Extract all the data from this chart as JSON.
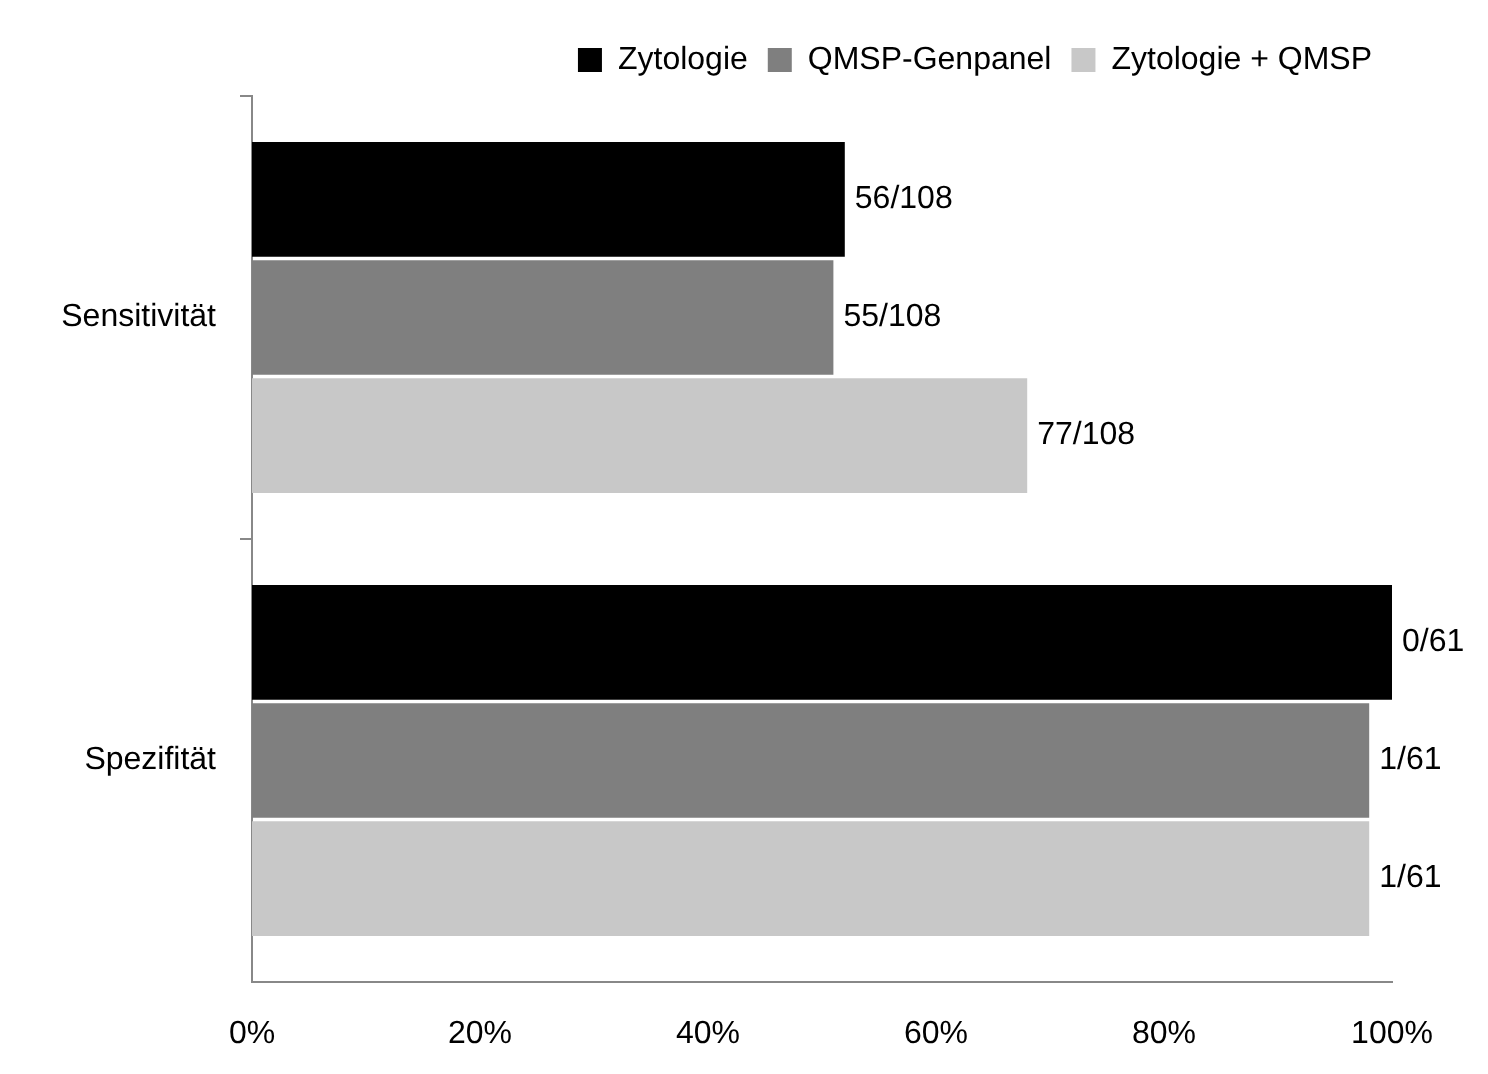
{
  "chart_data": {
    "type": "bar",
    "orientation": "horizontal",
    "categories": [
      "Sensitivität",
      "Spezifität"
    ],
    "series": [
      {
        "name": "Zytologie",
        "color": "#000000",
        "values": [
          52,
          100
        ],
        "value_labels": [
          "56/108",
          "0/61"
        ]
      },
      {
        "name": "QMSP-Genpanel",
        "color": "#7f7f7f",
        "values": [
          51,
          98
        ],
        "value_labels": [
          "55/108",
          "1/61"
        ]
      },
      {
        "name": "Zytologie + QMSP",
        "color": "#c8c8c8",
        "values": [
          68,
          98
        ],
        "value_labels": [
          "77/108",
          "1/61"
        ]
      }
    ],
    "xlim": [
      0,
      100
    ],
    "xticks": [
      {
        "value": 0,
        "label": "0%"
      },
      {
        "value": 20,
        "label": "20%"
      },
      {
        "value": 40,
        "label": "40%"
      },
      {
        "value": 60,
        "label": "60%"
      },
      {
        "value": 80,
        "label": "80%"
      },
      {
        "value": 100,
        "label": "100%"
      }
    ],
    "grid": false,
    "legend": "top right"
  }
}
